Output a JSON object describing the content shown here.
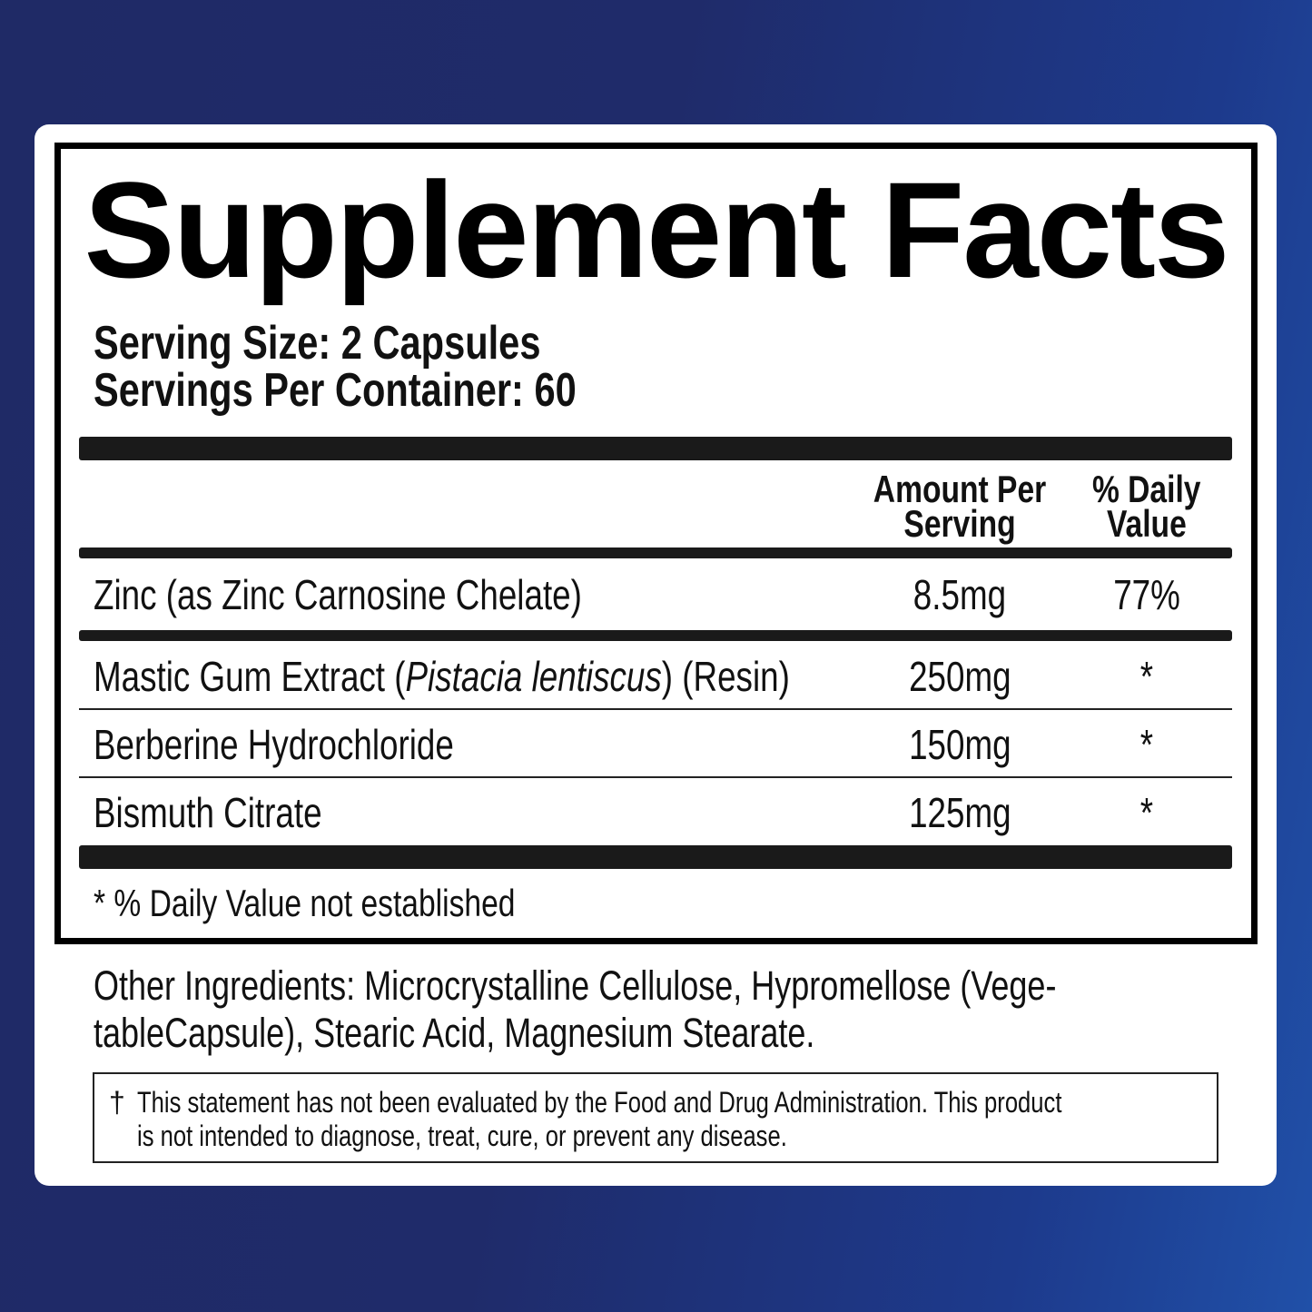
{
  "label": {
    "title": "Supplement Facts",
    "serving_size": "Serving Size: 2 Capsules",
    "servings_per_container": "Servings Per Container: 60",
    "headers": {
      "amount_line1": "Amount Per",
      "amount_line2": "Serving",
      "dv_line1": "% Daily",
      "dv_line2": "Value"
    },
    "rows": [
      {
        "name": "Zinc (as Zinc Carnosine Chelate)",
        "amount": "8.5mg",
        "dv": "77%"
      },
      {
        "name_pre": "Mastic Gum Extract (",
        "name_italic": "Pistacia lentiscus",
        "name_post": ") (Resin)",
        "amount": "250mg",
        "dv": "*"
      },
      {
        "name": "Berberine Hydrochloride",
        "amount": "150mg",
        "dv": "*"
      },
      {
        "name": "Bismuth Citrate",
        "amount": "125mg",
        "dv": "*"
      }
    ],
    "footnote": "* % Daily Value not established"
  },
  "other_ingredients": {
    "line1": "Other Ingredients: Microcrystalline Cellulose, Hypromellose (Vege-",
    "line2": "tableCapsule), Stearic Acid, Magnesium Stearate."
  },
  "disclaimer": {
    "symbol": "†",
    "line1": "This statement has not been evaluated by the Food and Drug Administration. This  product",
    "line2": "is not intended to diagnose, treat, cure, or prevent any disease."
  },
  "colors": {
    "background": "#1f2a66",
    "accent": "#2050a8",
    "card": "#ffffff",
    "text": "#111111"
  }
}
